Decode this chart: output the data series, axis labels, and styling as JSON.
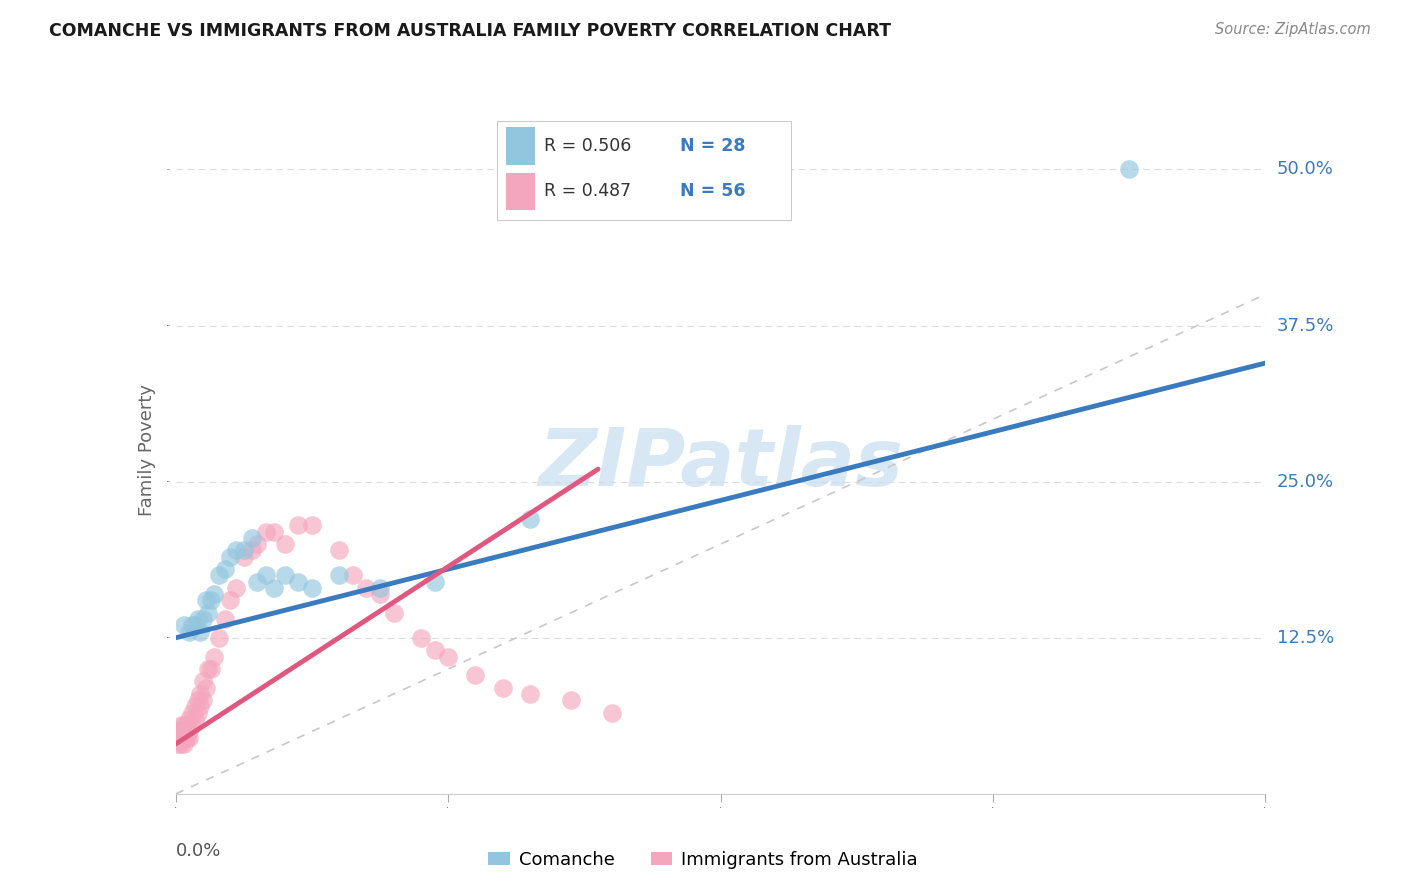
{
  "title": "COMANCHE VS IMMIGRANTS FROM AUSTRALIA FAMILY POVERTY CORRELATION CHART",
  "source": "Source: ZipAtlas.com",
  "ylabel": "Family Poverty",
  "yticks_labels": [
    "12.5%",
    "25.0%",
    "37.5%",
    "50.0%"
  ],
  "ytick_vals": [
    0.125,
    0.25,
    0.375,
    0.5
  ],
  "xlim": [
    0.0,
    0.4
  ],
  "ylim": [
    0.0,
    0.55
  ],
  "watermark": "ZIPatlas",
  "legend_blue_r": "R = 0.506",
  "legend_blue_n": "N = 28",
  "legend_pink_r": "R = 0.487",
  "legend_pink_n": "N = 56",
  "legend_blue_label": "Comanche",
  "legend_pink_label": "Immigrants from Australia",
  "blue_scatter_color": "#92c5de",
  "pink_scatter_color": "#f4a6be",
  "blue_line_color": "#3a7bbf",
  "pink_line_color": "#e05880",
  "diagonal_color": "#c8c8c8",
  "text_blue": "#3a7bbf",
  "text_pink": "#e05880",
  "background_color": "#ffffff",
  "grid_color": "#dddddd",
  "comanche_x": [
    0.003,
    0.005,
    0.006,
    0.007,
    0.008,
    0.009,
    0.01,
    0.011,
    0.012,
    0.013,
    0.014,
    0.016,
    0.018,
    0.02,
    0.022,
    0.025,
    0.028,
    0.03,
    0.033,
    0.036,
    0.04,
    0.045,
    0.05,
    0.06,
    0.075,
    0.095,
    0.13,
    0.35
  ],
  "comanche_y": [
    0.135,
    0.13,
    0.135,
    0.135,
    0.14,
    0.13,
    0.14,
    0.155,
    0.145,
    0.155,
    0.16,
    0.175,
    0.18,
    0.19,
    0.195,
    0.195,
    0.205,
    0.17,
    0.175,
    0.165,
    0.175,
    0.17,
    0.165,
    0.175,
    0.165,
    0.17,
    0.22,
    0.5
  ],
  "australia_x": [
    0.001,
    0.001,
    0.001,
    0.002,
    0.002,
    0.002,
    0.002,
    0.003,
    0.003,
    0.003,
    0.003,
    0.004,
    0.004,
    0.004,
    0.005,
    0.005,
    0.005,
    0.006,
    0.006,
    0.007,
    0.007,
    0.008,
    0.008,
    0.009,
    0.009,
    0.01,
    0.01,
    0.011,
    0.012,
    0.013,
    0.014,
    0.016,
    0.018,
    0.02,
    0.022,
    0.025,
    0.028,
    0.03,
    0.033,
    0.036,
    0.04,
    0.045,
    0.05,
    0.06,
    0.065,
    0.07,
    0.075,
    0.08,
    0.09,
    0.095,
    0.1,
    0.11,
    0.12,
    0.13,
    0.145,
    0.16
  ],
  "australia_y": [
    0.04,
    0.045,
    0.05,
    0.04,
    0.045,
    0.05,
    0.055,
    0.04,
    0.045,
    0.05,
    0.055,
    0.045,
    0.05,
    0.055,
    0.045,
    0.05,
    0.06,
    0.055,
    0.065,
    0.06,
    0.07,
    0.065,
    0.075,
    0.07,
    0.08,
    0.075,
    0.09,
    0.085,
    0.1,
    0.1,
    0.11,
    0.125,
    0.14,
    0.155,
    0.165,
    0.19,
    0.195,
    0.2,
    0.21,
    0.21,
    0.2,
    0.215,
    0.215,
    0.195,
    0.175,
    0.165,
    0.16,
    0.145,
    0.125,
    0.115,
    0.11,
    0.095,
    0.085,
    0.08,
    0.075,
    0.065
  ],
  "blue_line_x0": 0.0,
  "blue_line_y0": 0.125,
  "blue_line_x1": 0.4,
  "blue_line_y1": 0.345,
  "pink_line_x0": 0.0,
  "pink_line_y0": 0.04,
  "pink_line_x1": 0.155,
  "pink_line_y1": 0.26
}
